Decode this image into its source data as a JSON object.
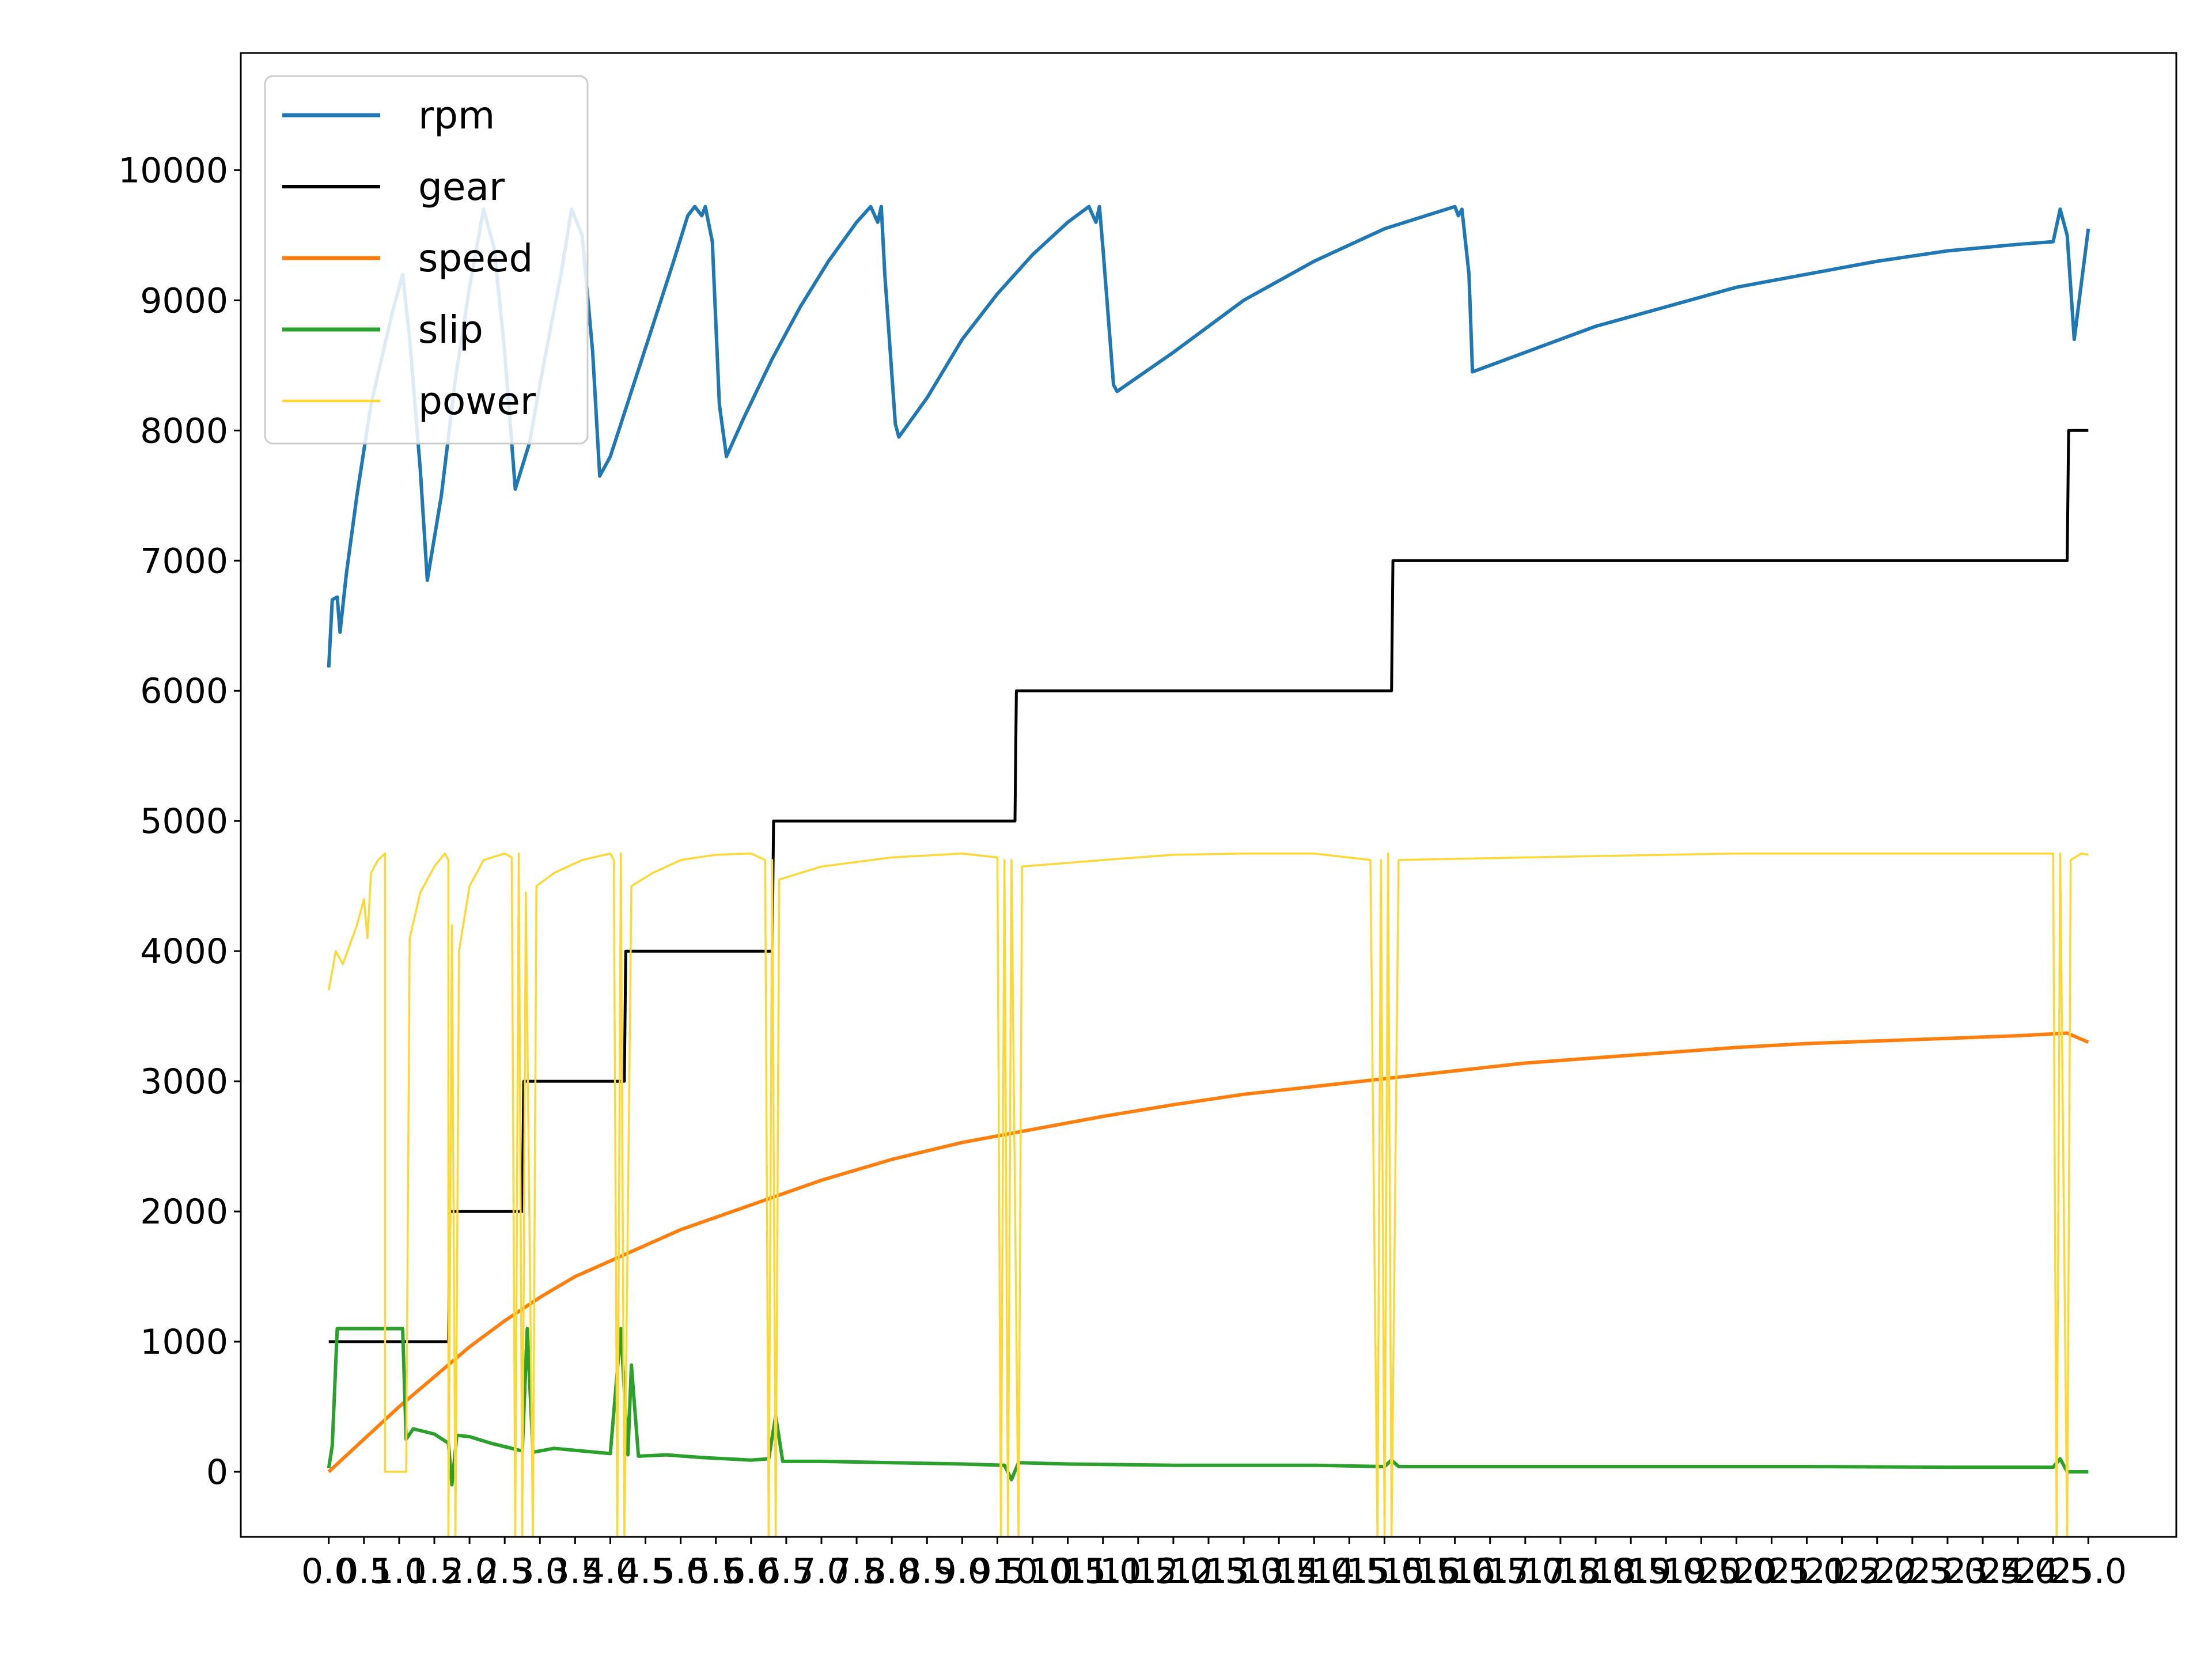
{
  "chart_data": {
    "type": "line",
    "title": "",
    "xlabel": "",
    "ylabel": "",
    "xlim": [
      -1.25,
      26.25
    ],
    "ylim": [
      -500,
      10900
    ],
    "grid": false,
    "legend_position": "top-left",
    "y_ticks": [
      0,
      1000,
      2000,
      3000,
      4000,
      5000,
      6000,
      7000,
      8000,
      9000,
      10000
    ],
    "x_tick_labels": [
      "0.0",
      "0.5",
      "1.0",
      "1.5",
      "2.0",
      "2.5",
      "3.0",
      "3.5",
      "4.0",
      "4.5",
      "5.0",
      "5.5",
      "6.0",
      "6.5",
      "7.0",
      "7.5",
      "8.0",
      "8.5",
      "9.0",
      "9.5",
      "10.0",
      "10.5",
      "11.0",
      "11.5",
      "12.0",
      "12.5",
      "13.0",
      "13.5",
      "14.0",
      "14.5",
      "15.0",
      "15.5",
      "16.0",
      "16.5",
      "17.0",
      "17.5",
      "18.0",
      "18.5",
      "19.0",
      "19.5",
      "20.0",
      "20.5",
      "21.0",
      "21.5",
      "22.0",
      "22.5",
      "23.0",
      "23.5",
      "24.0",
      "24.5",
      "25.0"
    ],
    "series": [
      {
        "name": "rpm",
        "color": "#1f77b4",
        "width": 6,
        "points": [
          [
            0,
            6180
          ],
          [
            0.05,
            6700
          ],
          [
            0.12,
            6720
          ],
          [
            0.16,
            6450
          ],
          [
            0.25,
            6900
          ],
          [
            0.4,
            7500
          ],
          [
            0.6,
            8200
          ],
          [
            0.9,
            8900
          ],
          [
            1.05,
            9200
          ],
          [
            1.15,
            8700
          ],
          [
            1.3,
            7700
          ],
          [
            1.4,
            6850
          ],
          [
            1.6,
            7500
          ],
          [
            1.8,
            8400
          ],
          [
            2.0,
            9100
          ],
          [
            2.2,
            9700
          ],
          [
            2.35,
            9400
          ],
          [
            2.5,
            8600
          ],
          [
            2.65,
            7550
          ],
          [
            2.85,
            7900
          ],
          [
            3.05,
            8500
          ],
          [
            3.3,
            9200
          ],
          [
            3.45,
            9700
          ],
          [
            3.6,
            9500
          ],
          [
            3.75,
            8600
          ],
          [
            3.85,
            7650
          ],
          [
            4.0,
            7800
          ],
          [
            4.3,
            8300
          ],
          [
            4.6,
            8800
          ],
          [
            4.9,
            9300
          ],
          [
            5.1,
            9650
          ],
          [
            5.2,
            9720
          ],
          [
            5.3,
            9650
          ],
          [
            5.35,
            9720
          ],
          [
            5.45,
            9450
          ],
          [
            5.55,
            8200
          ],
          [
            5.65,
            7800
          ],
          [
            5.9,
            8100
          ],
          [
            6.3,
            8550
          ],
          [
            6.7,
            8950
          ],
          [
            7.1,
            9300
          ],
          [
            7.5,
            9600
          ],
          [
            7.7,
            9720
          ],
          [
            7.8,
            9600
          ],
          [
            7.85,
            9720
          ],
          [
            7.9,
            9200
          ],
          [
            8.05,
            8050
          ],
          [
            8.1,
            7950
          ],
          [
            8.5,
            8250
          ],
          [
            9.0,
            8700
          ],
          [
            9.5,
            9050
          ],
          [
            10.0,
            9350
          ],
          [
            10.5,
            9600
          ],
          [
            9.9,
            9300
          ],
          [
            9.3,
            8900
          ],
          [
            8.7,
            8450
          ],
          [
            9.3,
            8900
          ],
          [
            10.0,
            9350
          ],
          [
            10.5,
            9600
          ],
          [
            9.5,
            9050
          ]
        ],
        "note_hidden": ""
      },
      {
        "name": "gear",
        "color": "#000000",
        "width": 5,
        "points": [
          [
            0,
            1000
          ],
          [
            1.7,
            1000
          ],
          [
            1.72,
            2000
          ],
          [
            2.75,
            2000
          ],
          [
            2.77,
            3000
          ],
          [
            4.2,
            3000
          ],
          [
            4.22,
            4000
          ],
          [
            6.3,
            4000
          ],
          [
            6.32,
            5000
          ],
          [
            9.75,
            5000
          ],
          [
            9.77,
            6000
          ],
          [
            15.1,
            6000
          ],
          [
            15.12,
            7000
          ],
          [
            24.7,
            7000
          ],
          [
            24.72,
            8000
          ],
          [
            25.0,
            8000
          ]
        ]
      },
      {
        "name": "speed",
        "color": "#ff7f0e",
        "width": 6,
        "points": [
          [
            0,
            0
          ],
          [
            0.5,
            250
          ],
          [
            1.0,
            500
          ],
          [
            1.5,
            730
          ],
          [
            2.0,
            960
          ],
          [
            2.5,
            1160
          ],
          [
            3.0,
            1340
          ],
          [
            3.5,
            1500
          ],
          [
            4.0,
            1620
          ],
          [
            5.0,
            1860
          ],
          [
            6.0,
            2050
          ],
          [
            7.0,
            2240
          ],
          [
            8.0,
            2400
          ],
          [
            9.0,
            2530
          ],
          [
            10.0,
            2630
          ],
          [
            11.0,
            2730
          ],
          [
            12.0,
            2820
          ],
          [
            13.0,
            2900
          ],
          [
            14.0,
            2960
          ],
          [
            15.0,
            3020
          ],
          [
            16.0,
            3080
          ],
          [
            17.0,
            3140
          ],
          [
            18.0,
            3180
          ],
          [
            19.0,
            3220
          ],
          [
            20.0,
            3260
          ],
          [
            21.0,
            3290
          ],
          [
            22.0,
            3310
          ],
          [
            23.0,
            3330
          ],
          [
            24.0,
            3350
          ],
          [
            24.7,
            3370
          ],
          [
            25.0,
            3300
          ]
        ]
      },
      {
        "name": "slip",
        "color": "#2ca02c",
        "width": 6,
        "points": [
          [
            0,
            30
          ],
          [
            0.05,
            200
          ],
          [
            0.12,
            1100
          ],
          [
            0.5,
            1100
          ],
          [
            1.0,
            1100
          ],
          [
            1.05,
            1100
          ],
          [
            1.1,
            250
          ],
          [
            1.2,
            330
          ],
          [
            1.5,
            290
          ],
          [
            1.7,
            220
          ],
          [
            1.75,
            -100
          ],
          [
            1.82,
            280
          ],
          [
            2.0,
            270
          ],
          [
            2.3,
            220
          ],
          [
            2.75,
            160
          ],
          [
            2.82,
            1100
          ],
          [
            2.9,
            150
          ],
          [
            3.2,
            180
          ],
          [
            3.6,
            160
          ],
          [
            4.0,
            140
          ],
          [
            4.15,
            1100
          ],
          [
            4.25,
            130
          ],
          [
            4.3,
            820
          ],
          [
            4.4,
            120
          ],
          [
            4.8,
            130
          ],
          [
            5.3,
            110
          ],
          [
            6.0,
            90
          ],
          [
            6.25,
            100
          ],
          [
            6.35,
            430
          ],
          [
            6.45,
            80
          ],
          [
            7.0,
            80
          ],
          [
            8.0,
            70
          ],
          [
            9.0,
            60
          ],
          [
            9.6,
            50
          ],
          [
            9.7,
            -60
          ],
          [
            9.8,
            70
          ],
          [
            10.5,
            60
          ],
          [
            12.0,
            50
          ],
          [
            14.0,
            50
          ],
          [
            15.0,
            40
          ],
          [
            15.1,
            90
          ],
          [
            15.2,
            40
          ],
          [
            17.0,
            40
          ],
          [
            19.0,
            40
          ],
          [
            21.0,
            40
          ],
          [
            23.0,
            35
          ],
          [
            24.5,
            35
          ],
          [
            24.6,
            100
          ],
          [
            24.7,
            0
          ],
          [
            25.0,
            0
          ]
        ]
      },
      {
        "name": "power",
        "color": "#fdd835",
        "width": 3.5,
        "points": [
          [
            0,
            3700
          ],
          [
            0.1,
            4000
          ],
          [
            0.2,
            3900
          ],
          [
            0.4,
            4200
          ],
          [
            0.5,
            4400
          ],
          [
            0.55,
            4100
          ],
          [
            0.6,
            4600
          ],
          [
            0.7,
            4700
          ],
          [
            0.8,
            4750
          ],
          [
            0.8,
            0
          ],
          [
            1.1,
            0
          ],
          [
            1.15,
            4100
          ],
          [
            1.3,
            4450
          ],
          [
            1.5,
            4650
          ],
          [
            1.65,
            4750
          ],
          [
            1.7,
            4700
          ],
          [
            1.7,
            -500
          ],
          [
            1.75,
            4200
          ],
          [
            1.8,
            -500
          ],
          [
            1.85,
            4000
          ],
          [
            2.0,
            4500
          ],
          [
            2.2,
            4700
          ],
          [
            2.5,
            4750
          ],
          [
            2.6,
            4720
          ],
          [
            2.65,
            -500
          ],
          [
            2.7,
            4750
          ],
          [
            2.75,
            -500
          ],
          [
            2.8,
            4450
          ],
          [
            2.9,
            -500
          ],
          [
            2.95,
            4500
          ],
          [
            3.2,
            4600
          ],
          [
            3.6,
            4700
          ],
          [
            4.0,
            4750
          ],
          [
            4.05,
            4700
          ],
          [
            4.1,
            -500
          ],
          [
            4.15,
            4750
          ],
          [
            4.2,
            -500
          ],
          [
            4.3,
            4500
          ],
          [
            4.6,
            4600
          ],
          [
            5.0,
            4700
          ],
          [
            5.5,
            4740
          ],
          [
            6.0,
            4750
          ],
          [
            6.2,
            4700
          ],
          [
            6.25,
            -500
          ],
          [
            6.3,
            4700
          ],
          [
            6.35,
            -500
          ],
          [
            6.4,
            4550
          ],
          [
            7.0,
            4650
          ],
          [
            8.0,
            4720
          ],
          [
            9.0,
            4750
          ],
          [
            9.5,
            4720
          ],
          [
            9.55,
            -500
          ],
          [
            9.6,
            4700
          ],
          [
            9.65,
            -500
          ],
          [
            9.7,
            4700
          ],
          [
            9.8,
            -500
          ],
          [
            9.85,
            4650
          ],
          [
            11.0,
            4700
          ],
          [
            12.0,
            4740
          ],
          [
            13.0,
            4750
          ],
          [
            14.0,
            4750
          ],
          [
            14.8,
            4700
          ],
          [
            14.9,
            -500
          ],
          [
            14.95,
            4700
          ],
          [
            15.0,
            -500
          ],
          [
            15.05,
            4750
          ],
          [
            15.1,
            -500
          ],
          [
            15.2,
            4700
          ],
          [
            17.0,
            4720
          ],
          [
            20.0,
            4750
          ],
          [
            24.5,
            4750
          ],
          [
            24.55,
            -500
          ],
          [
            24.6,
            4750
          ],
          [
            24.7,
            -500
          ],
          [
            24.75,
            4700
          ],
          [
            24.9,
            4750
          ],
          [
            25.0,
            4740
          ]
        ]
      }
    ]
  }
}
